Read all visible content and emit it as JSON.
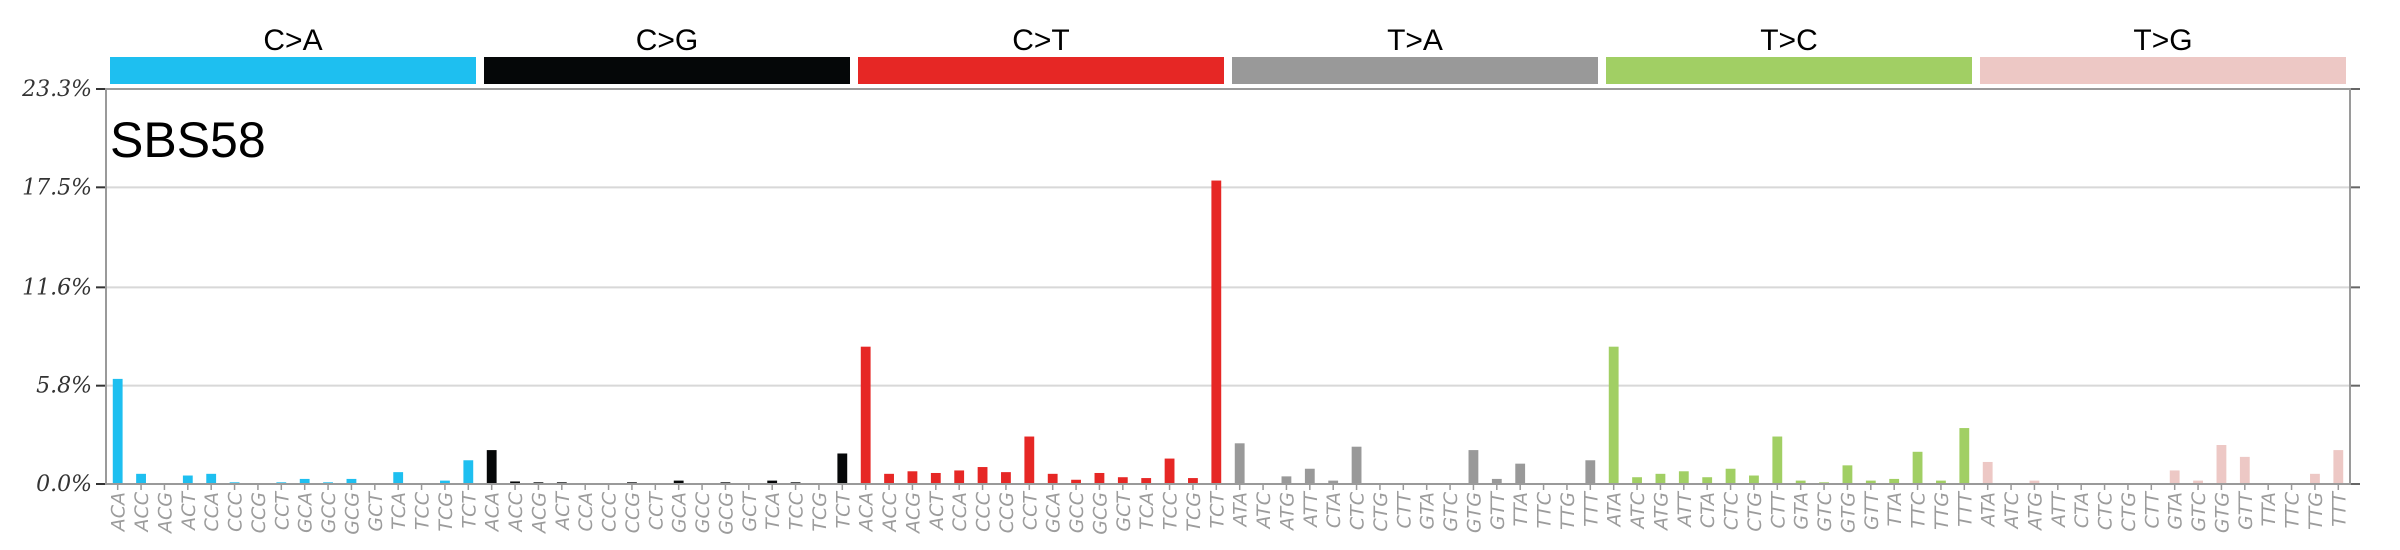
{
  "chart_data": {
    "type": "bar",
    "title": "SBS58",
    "ylim": [
      0,
      23.3
    ],
    "y_tick_labels": [
      "0.0%",
      "5.8%",
      "11.6%",
      "17.5%",
      "23.3%"
    ],
    "y_tick_values": [
      0,
      5.8,
      11.6,
      17.5,
      23.3
    ],
    "grid": true,
    "groups": [
      {
        "label": "C>A",
        "color": "#1ebff0",
        "contexts": [
          "ACA",
          "ACC",
          "ACG",
          "ACT",
          "CCA",
          "CCC",
          "CCG",
          "CCT",
          "GCA",
          "GCC",
          "GCG",
          "GCT",
          "TCA",
          "TCC",
          "TCG",
          "TCT"
        ],
        "values": [
          6.2,
          0.6,
          0.05,
          0.5,
          0.6,
          0.1,
          0.05,
          0.1,
          0.3,
          0.1,
          0.3,
          0.05,
          0.7,
          0.05,
          0.2,
          1.4
        ]
      },
      {
        "label": "C>G",
        "color": "#050708",
        "contexts": [
          "ACA",
          "ACC",
          "ACG",
          "ACT",
          "CCA",
          "CCC",
          "CCG",
          "CCT",
          "GCA",
          "GCC",
          "GCG",
          "GCT",
          "TCA",
          "TCC",
          "TCG",
          "TCT"
        ],
        "values": [
          2.0,
          0.15,
          0.1,
          0.1,
          0.05,
          0.05,
          0.1,
          0.05,
          0.2,
          0.05,
          0.1,
          0.05,
          0.2,
          0.1,
          0.05,
          1.8
        ]
      },
      {
        "label": "C>T",
        "color": "#e62725",
        "contexts": [
          "ACA",
          "ACC",
          "ACG",
          "ACT",
          "CCA",
          "CCC",
          "CCG",
          "CCT",
          "GCA",
          "GCC",
          "GCG",
          "GCT",
          "TCA",
          "TCC",
          "TCG",
          "TCT"
        ],
        "values": [
          8.1,
          0.6,
          0.75,
          0.65,
          0.8,
          1.0,
          0.7,
          2.8,
          0.6,
          0.25,
          0.65,
          0.4,
          0.35,
          1.5,
          0.35,
          17.9
        ]
      },
      {
        "label": "T>A",
        "color": "#999999",
        "contexts": [
          "ATA",
          "ATC",
          "ATG",
          "ATT",
          "CTA",
          "CTC",
          "CTG",
          "CTT",
          "GTA",
          "GTC",
          "GTG",
          "GTT",
          "TTA",
          "TTC",
          "TTG",
          "TTT"
        ],
        "values": [
          2.4,
          0.05,
          0.45,
          0.9,
          0.2,
          2.2,
          0.05,
          0.05,
          0.05,
          0.05,
          2.0,
          0.3,
          1.2,
          0.05,
          0.05,
          1.4
        ]
      },
      {
        "label": "T>C",
        "color": "#a1cf64",
        "contexts": [
          "ATA",
          "ATC",
          "ATG",
          "ATT",
          "CTA",
          "CTC",
          "CTG",
          "CTT",
          "GTA",
          "GTC",
          "GTG",
          "GTT",
          "TTA",
          "TTC",
          "TTG",
          "TTT"
        ],
        "values": [
          8.1,
          0.4,
          0.6,
          0.75,
          0.4,
          0.9,
          0.5,
          2.8,
          0.2,
          0.1,
          1.1,
          0.2,
          0.3,
          1.9,
          0.2,
          3.3
        ]
      },
      {
        "label": "T>G",
        "color": "#edc8c5",
        "contexts": [
          "ATA",
          "ATC",
          "ATG",
          "ATT",
          "CTA",
          "CTC",
          "CTG",
          "CTT",
          "GTA",
          "GTC",
          "GTG",
          "GTT",
          "TTA",
          "TTC",
          "TTG",
          "TTT"
        ],
        "values": [
          1.3,
          0.05,
          0.2,
          0.05,
          0.05,
          0.05,
          0.05,
          0.05,
          0.8,
          0.2,
          2.3,
          1.6,
          0.05,
          0.05,
          0.6,
          2.0
        ]
      }
    ]
  }
}
